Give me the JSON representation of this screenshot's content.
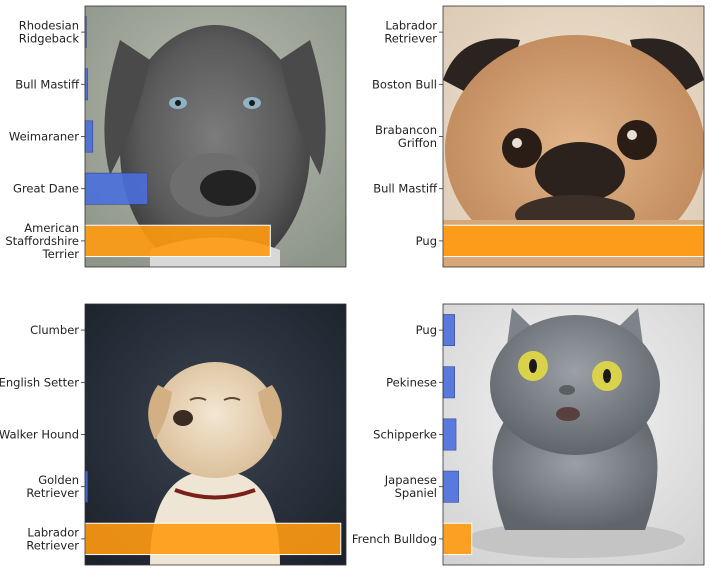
{
  "chart_data": [
    {
      "type": "bar",
      "orientation": "horizontal",
      "background_image": "gray-dog-photo",
      "categories": [
        "Rhodesian Ridgeback",
        "Bull Mastiff",
        "Weimaraner",
        "Great Dane",
        "American Staffordshire Terrier"
      ],
      "category_lines": [
        [
          "Rhodesian",
          "Ridgeback"
        ],
        [
          "Bull Mastiff"
        ],
        [
          "Weimaraner"
        ],
        [
          "Great Dane"
        ],
        [
          "American",
          "Staffordshire",
          "Terrier"
        ]
      ],
      "values": [
        0.005,
        0.01,
        0.03,
        0.24,
        0.71
      ],
      "highlight_index": 4,
      "xlim": [
        0,
        1
      ],
      "grid": false
    },
    {
      "type": "bar",
      "orientation": "horizontal",
      "background_image": "pug-photo",
      "categories": [
        "Labrador Retriever",
        "Boston Bull",
        "Brabancon Griffon",
        "Bull Mastiff",
        "Pug"
      ],
      "category_lines": [
        [
          "Labrador",
          "Retriever"
        ],
        [
          "Boston Bull"
        ],
        [
          "Brabancon",
          "Griffon"
        ],
        [
          "Bull Mastiff"
        ],
        [
          "Pug"
        ]
      ],
      "values": [
        0.0,
        0.0,
        0.0,
        0.0,
        1.0
      ],
      "highlight_index": 4,
      "xlim": [
        0,
        1
      ],
      "grid": false
    },
    {
      "type": "bar",
      "orientation": "horizontal",
      "background_image": "labrador-photo",
      "categories": [
        "Clumber",
        "English Setter",
        "Walker Hound",
        "Golden Retriever",
        "Labrador Retriever"
      ],
      "category_lines": [
        [
          "Clumber"
        ],
        [
          "English Setter"
        ],
        [
          "Walker Hound"
        ],
        [
          "Golden",
          "Retriever"
        ],
        [
          "Labrador",
          "Retriever"
        ]
      ],
      "values": [
        0.0,
        0.0,
        0.0,
        0.01,
        0.98
      ],
      "highlight_index": 4,
      "xlim": [
        0,
        1
      ],
      "grid": false
    },
    {
      "type": "bar",
      "orientation": "horizontal",
      "background_image": "gray-cat-photo",
      "categories": [
        "Pug",
        "Pekinese",
        "Schipperke",
        "Japanese Spaniel",
        "French Bulldog"
      ],
      "category_lines": [
        [
          "Pug"
        ],
        [
          "Pekinese"
        ],
        [
          "Schipperke"
        ],
        [
          "Japanese",
          "Spaniel"
        ],
        [
          "French Bulldog"
        ]
      ],
      "values": [
        0.045,
        0.045,
        0.05,
        0.06,
        0.11
      ],
      "highlight_index": 4,
      "xlim": [
        0,
        1
      ],
      "grid": false
    }
  ],
  "colors": {
    "bar": "#4a6fdc",
    "highlight": "#ff9a10",
    "axis": "#333333"
  }
}
